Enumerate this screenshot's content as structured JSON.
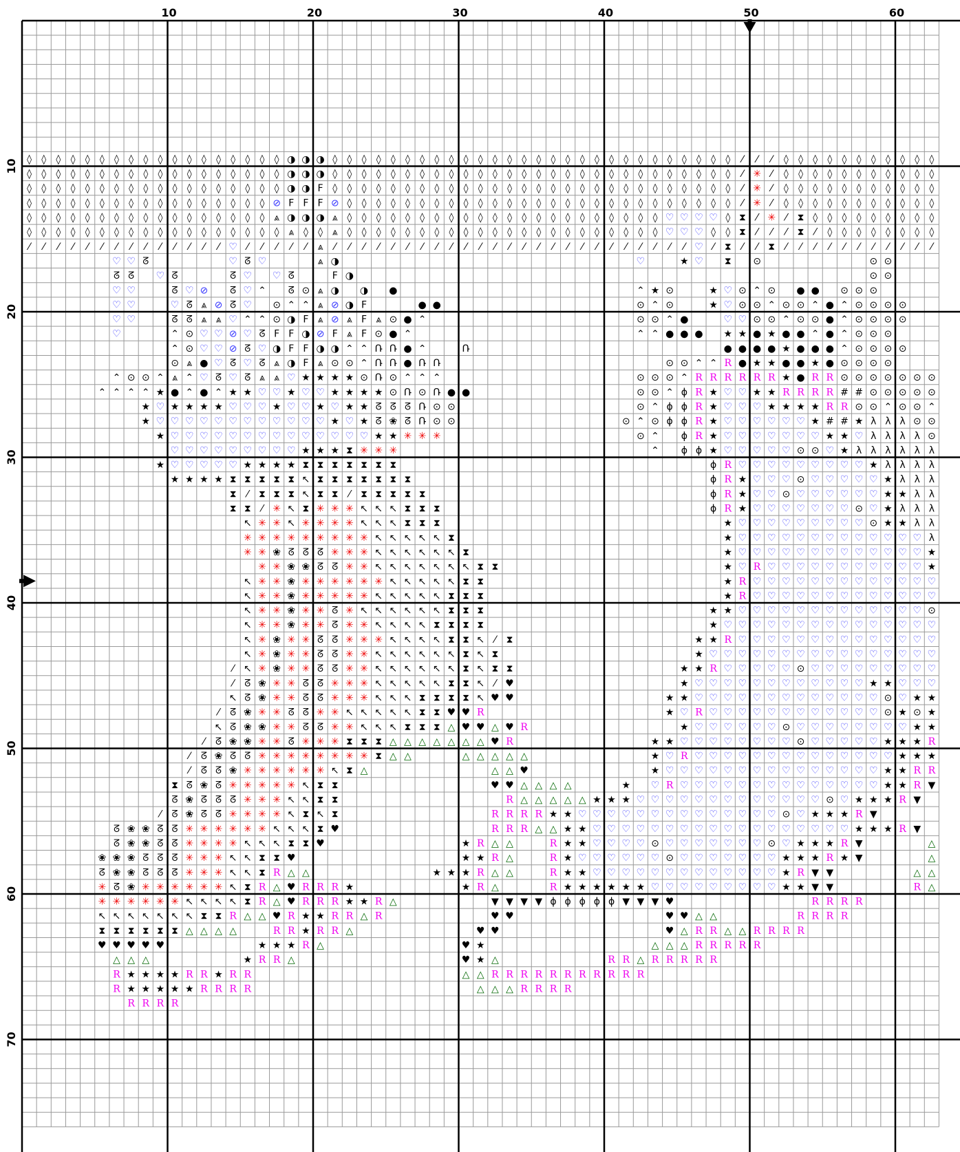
{
  "chart_data": {
    "type": "cross-stitch-pattern",
    "visible_columns": [
      1,
      63
    ],
    "visible_rows": [
      1,
      76
    ],
    "column_labels": [
      "10",
      "20",
      "30",
      "40",
      "50",
      "60"
    ],
    "row_labels": [
      "10",
      "20",
      "30",
      "40",
      "50",
      "60",
      "70"
    ],
    "center_marker_column": 50,
    "center_marker_row": 39,
    "legend": {
      "D": {
        "glyph": "◊",
        "color": "#000000"
      },
      "S": {
        "glyph": "⁄",
        "color": "#000000"
      },
      "H": {
        "glyph": "♡",
        "color": "#3333ff"
      },
      "L": {
        "glyph": "ᘔ",
        "color": "#000000"
      },
      "B": {
        "glyph": "◑",
        "color": "#000000"
      },
      "F": {
        "glyph": "F",
        "color": "#000000"
      },
      "O": {
        "glyph": "⊘",
        "color": "#3333ff"
      },
      "A": {
        "glyph": "⩓",
        "color": "#000000"
      },
      "C": {
        "glyph": "⌃",
        "color": "#000000"
      },
      "T": {
        "glyph": "⊙",
        "color": "#000000"
      },
      "o": {
        "glyph": "●",
        "color": "#000000"
      },
      "U": {
        "glyph": "Ռ",
        "color": "#000000"
      },
      "*": {
        "glyph": "★",
        "color": "#000000"
      },
      "N": {
        "glyph": "↖",
        "color": "#000000"
      },
      "X": {
        "glyph": "⧗",
        "color": "#000000"
      },
      "Q": {
        "glyph": "✳",
        "color": "#ee0000"
      },
      "W": {
        "glyph": "❀",
        "color": "#000000"
      },
      "K": {
        "glyph": "♥",
        "color": "#000000"
      },
      "R": {
        "glyph": "R",
        "color": "#ee00ee"
      },
      "G": {
        "glyph": "△",
        "color": "#006600"
      },
      "V": {
        "glyph": "▼",
        "color": "#000000"
      },
      "P": {
        "glyph": "ϕ",
        "color": "#000000"
      },
      "M": {
        "glyph": "λ",
        "color": "#000000"
      },
      "Y": {
        "glyph": "#",
        "color": "#000000"
      }
    },
    "rows": {
      "10": "DDDDDDDDDDDDDDDDDDBBBDDDDDDDDDDDDDDDDDDDDDDDDDDDDSSSDDDDDDDDDDDDD",
      "11": "DDDDDDDDDDDDDDDDDDBBBDDDDDDDDDDDDDDDDDDDDDDDDDDDDSQSDDDDDDDDDDDDD",
      "12": "DDDDDDDDDDDDDDDDDDBBFDDDDDDDDDDDDDDDDDDDDDDDDDDDDSQSDDDDDDDDDDDDD",
      "13": "DDDDDDDDDDDDDDDDDOFFFODDDDDDDDDDDDDDDDDDDDDDDDDDDSQSDDDDDDDDDDDDD",
      "14": "DDDDDDDDDDDDDDDDDABBBADDDDDDDDDDDDDDDDDDDDDDHHHHDXSQSXDDDDDDDDDDD",
      "15": "DDDDDDDDDDDDDDDDDDADDADDDDDDDDDDDDDDDDDDDDDDHHHDDXSSSXSDDDDDDDDDD",
      "16": "SSSSSSSSSSSSSSHSSSSSASSSSSSSSSSSSSSSSSSSSSSSSSHSXSSXSSSSSSSSSSSSS",
      "17": "......HHL.....HLH...AB....................H..*H.X.T.......TT.....",
      "18": "......LL.HL...LH.HL..FB...................................TT.....",
      "19": "......HH..LHO.LHC.LTAB.B.o................C*T..*HTCT.oo.TTT......",
      "20": "......HH..HLAOLH.TCCAOBF...oo.............TCT..*HTTCTTCoCTTTT....",
      "21": "......HH..LLAAHCCTBFAOAFAToC..............TTCo..HHTTCTToCTTTT....",
      "22": "......H...CTHHOHLFFBOFAFToC...............CCooo.**o*ooCoCTTT.....",
      "23": "..........CTHHOLHBFFBBCCUUoC..U.................oooo*oooCTTTT....",
      "24": "..........TAoHLHLABFATTCUUoUU...............TTCCRo**oo*oTTTT.....",
      "25": "......CTTCACHLHLAAH****TUTCCC.............TTTCRRRRRR*oRRTTTTTTTTT",
      "26": ".....CCCC*oCoC**HH*HH****TUTUoo...........TTCPR*HH**RRRRYYTTTTTT.",
      "27": "........*H****HHH*HH*H**LLLUTT............TCPPR*HHH****RRTTCTTCC.",
      "28": "........*HHHHHHHHHHHH*H*LWLUTT...........TCTPPR*HHHHHH*YY*MMMTTTC",
      "29": ".........*HHHHHHHHHHHHHH**QQQ.............TC.PR*HHHHHHH**HMMMMTTT",
      "30": "..........HHHHHHHHH***XQQQ.................C.PP*HHHHHTTH*MMMMMMM",
      "31": ".........*HHHHH****XXXXXXX.....................PRHHHHHHHHH*MMMMMM",
      "32": "..........****XXXXXNXXXXXXX....................PR*HHHTHHHHH*MMMMM",
      "33": "..............XSXXXNXXSXXXXX...................PR*HHTHHHHHH**MMMM",
      "34": "..............XXSQNXQQQNNNXXX..................PR*HHHHHHHTH*MMMMM",
      "35": "...............NQQNQQQQNNNXXX...................*HHHHHHHHHT**MMMM",
      "36": "...............QQQQQQQQQNNNNNX..................*HHHHHHHHHHHHHMMM",
      "37": "...............QQWLLLQQQNNNNNNX.................*HHHHHHHHHHHHH*MMM",
      "38": "................QQWWLLQQNNNNNNNXX...............*HRHHHHHHHHHHH*M.",
      "39": "...............NQQWQQQQQQNNNNNXX................*RHHHHHHHHHHHHH**",
      "40": "...............NQQWQQQQQNNNNNXXX................*RHHHHHHHHHHHHHH*",
      "41": "...............NQQWQQLQNNNNNNXXX...............**HHHHHHHHHHHHHTH*",
      "42": "...............NQQWQQLQQNNNNXXXX...............*HHHHHHHHHHHHHHHT*",
      "43": "...............NQWQQLLQQQNNNNXXNSX............**RHHHHHHHHHHHHHHH**",
      "44": "...............NQWQQLLQQNNNNNNXNX.............*HHHHHHHHHHHHHHHH**",
      "45": "..............SNQWQQLLQQNNNNNNXNXX...........**RHHHHHTHHHHHHHHH*RR",
      "46": "..............SLWQQLLQQQNNNNNXXNSK...........*HHHHHHHHHHHH**HHH*R",
      "47": "..............NLWQQLLQQQNNNXXXXNKK..........**HHHHHHHHHHHHHTH***RR",
      "48": ".............SLWQQLLQQNNNNNXXKKR............*HRHHHHHHHHHHHHT*T*RRV",
      "49": ".............NLWWQQLLQQNNNXXXGKKGKR..........*HHHHHHTHHHHHHHH**RTRVV",
      "50": "............SLWWQQLQQQXXXGGGGGGGKR.........**HHHHHHHHTHHHHH***RRVV",
      "51": "...........SLWLLQQQQQQQQXGG...GGGGG........*HRHHHHHHHHHHHHHH***RPVPV",
      "52": "...........SLLWQQQQQQNXG........GGK........*HHHHHHHHHHHHHHH**RRVPPPP",
      "53": "..........XLWLQQQQQNXX..........KKGGGG...*.HRHHHHHHHHHHHHHH**RV.PPPPP",
      "54": "..........LWLLLQQQNNXX...........RGGGGG***HHHHHHHHHHHHHTH***RV.VPPKK",
      "55": ".........SLWLLQQQQNXNX..........RRRR**HHHHHHHHHHHHHHTH***RV....KGK",
      "56": "......LWWLLQQQQQQNNNXK..........RRRGG**HHHHHHHHHHHHHHHHHH***RV..GGGKG",
      "57": "......LWWLLQQQQNNNXXK.........*RGG..R**HHHHTHHHHHHHTH***RV....GGG",
      "58": ".....WWWLLLQQQNNXXK...........**RG..R*HHHHHHTHHHHHHH***R*V....GGGGRG",
      "59": ".....LWWLLLQQQNNXRGG........***RGG..R**HHHHHHHHHHHHH*RVV.....GGGRR",
      "60": ".....QLWQQQQQQNXRGKRRR*.......*RG...R******HHHHHHHHH**VV.....RGRRRR",
      "61": ".....QQQQQQNNNNXRGKRRR**RG......VVVVPPPPPVVVK.........RRRR.........",
      "62": ".....NNNNNNNXXRGGKR**RRGR.......KK..........KKGG.....RRRR..........",
      "63": ".....XXXXXXGGGG..RR*RRG........KK...........KGRRGGRRRR.............",
      "64": ".....KKKKK......***RG.........K*...........GGGRRRRR................",
      "65": "......GGG......*RRG...........K*G.......RRGRRRRR...................",
      "66": "......R****RR*RR..............GGRRRRRRRRRRR........................",
      "67": "......R*****RRRR...............GGGRRRR.............................",
      "68": ".......RRRR........................................................"
    }
  }
}
